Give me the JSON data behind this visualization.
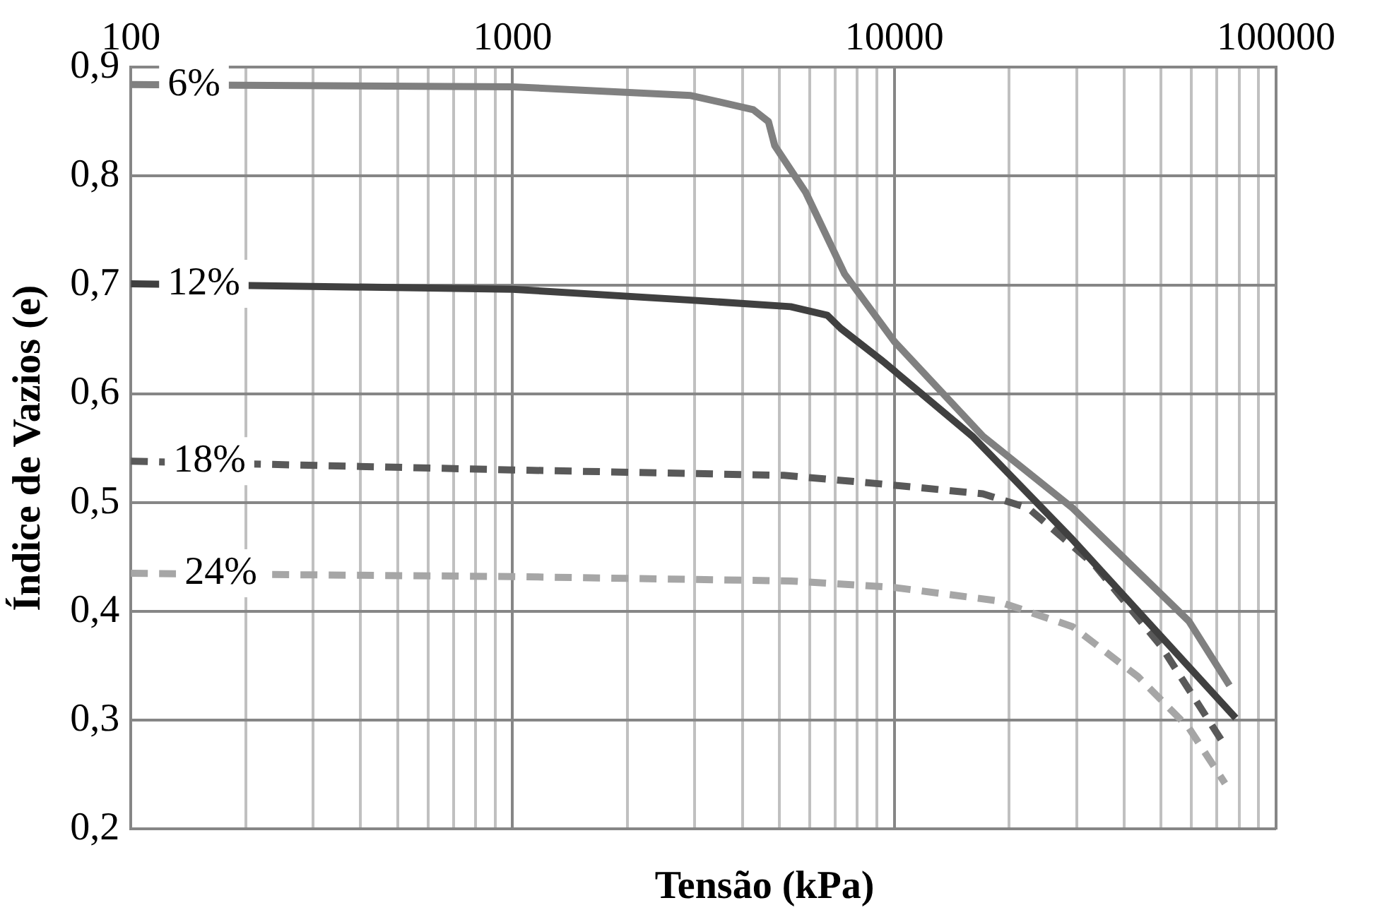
{
  "chart_data": {
    "type": "line",
    "xlabel": "Tensão (kPa)",
    "ylabel": "Índice de Vazios (e)",
    "log": "x",
    "grid": true,
    "legend": false,
    "marker": "none",
    "xlim": [
      100,
      100000
    ],
    "ylim": [
      0.2,
      0.9
    ],
    "xticks": [
      100,
      {
        "value": 200,
        "label": null
      },
      {
        "value": 300,
        "label": null
      },
      {
        "value": 400,
        "label": null
      },
      {
        "value": 500,
        "label": null
      },
      {
        "value": 600,
        "label": null
      },
      {
        "value": 700,
        "label": null
      },
      {
        "value": 800,
        "label": null
      },
      {
        "value": 900,
        "label": null
      },
      1000,
      {
        "value": 2000,
        "label": null
      },
      {
        "value": 3000,
        "label": null
      },
      {
        "value": 4000,
        "label": null
      },
      {
        "value": 5000,
        "label": null
      },
      {
        "value": 6000,
        "label": null
      },
      {
        "value": 7000,
        "label": null
      },
      {
        "value": 8000,
        "label": null
      },
      {
        "value": 9000,
        "label": null
      },
      10000,
      {
        "value": 20000,
        "label": null
      },
      {
        "value": 30000,
        "label": null
      },
      {
        "value": 40000,
        "label": null
      },
      {
        "value": 50000,
        "label": null
      },
      {
        "value": 60000,
        "label": null
      },
      {
        "value": 70000,
        "label": null
      },
      {
        "value": 80000,
        "label": null
      },
      {
        "value": 90000,
        "label": null
      },
      100000
    ],
    "yticks": [
      {
        "value": 0.2,
        "label": "0,2"
      },
      {
        "value": 0.3,
        "label": "0,3"
      },
      {
        "value": 0.4,
        "label": "0,4"
      },
      {
        "value": 0.5,
        "label": "0,5"
      },
      {
        "value": 0.6,
        "label": "0,6"
      },
      {
        "value": 0.7,
        "label": "0,7"
      },
      {
        "value": 0.8,
        "label": "0,8"
      },
      {
        "value": 0.9,
        "label": "0,9"
      }
    ],
    "series": [
      {
        "name": "6%",
        "color": "#808080",
        "line_style": "solid",
        "x": [
          100,
          1000,
          2930,
          4270,
          4680,
          4860,
          5860,
          7410,
          10000,
          17060,
          29300,
          59100,
          75500
        ],
        "values": [
          0.884,
          0.882,
          0.874,
          0.861,
          0.85,
          0.828,
          0.785,
          0.71,
          0.648,
          0.561,
          0.495,
          0.391,
          0.332
        ]
      },
      {
        "name": "12%",
        "color": "#404040",
        "line_style": "solid",
        "x": [
          100,
          1000,
          2930,
          5350,
          6680,
          7240,
          9320,
          16000,
          29300,
          50000,
          78400
        ],
        "values": [
          0.701,
          0.696,
          0.686,
          0.68,
          0.672,
          0.66,
          0.63,
          0.561,
          0.466,
          0.377,
          0.302
        ]
      },
      {
        "name": "18%",
        "color": "#595959",
        "line_style": "dashed",
        "x": [
          100,
          1000,
          5130,
          9320,
          17060,
          22400,
          33400,
          50000,
          72100
        ],
        "values": [
          0.538,
          0.53,
          0.525,
          0.517,
          0.508,
          0.495,
          0.443,
          0.368,
          0.281
        ]
      },
      {
        "name": "24%",
        "color": "#a6a6a6",
        "line_style": "dashed",
        "x": [
          100,
          1000,
          5350,
          10000,
          18400,
          29300,
          43500,
          59100,
          73500
        ],
        "values": [
          0.435,
          0.432,
          0.428,
          0.422,
          0.41,
          0.386,
          0.34,
          0.293,
          0.242
        ]
      }
    ]
  }
}
